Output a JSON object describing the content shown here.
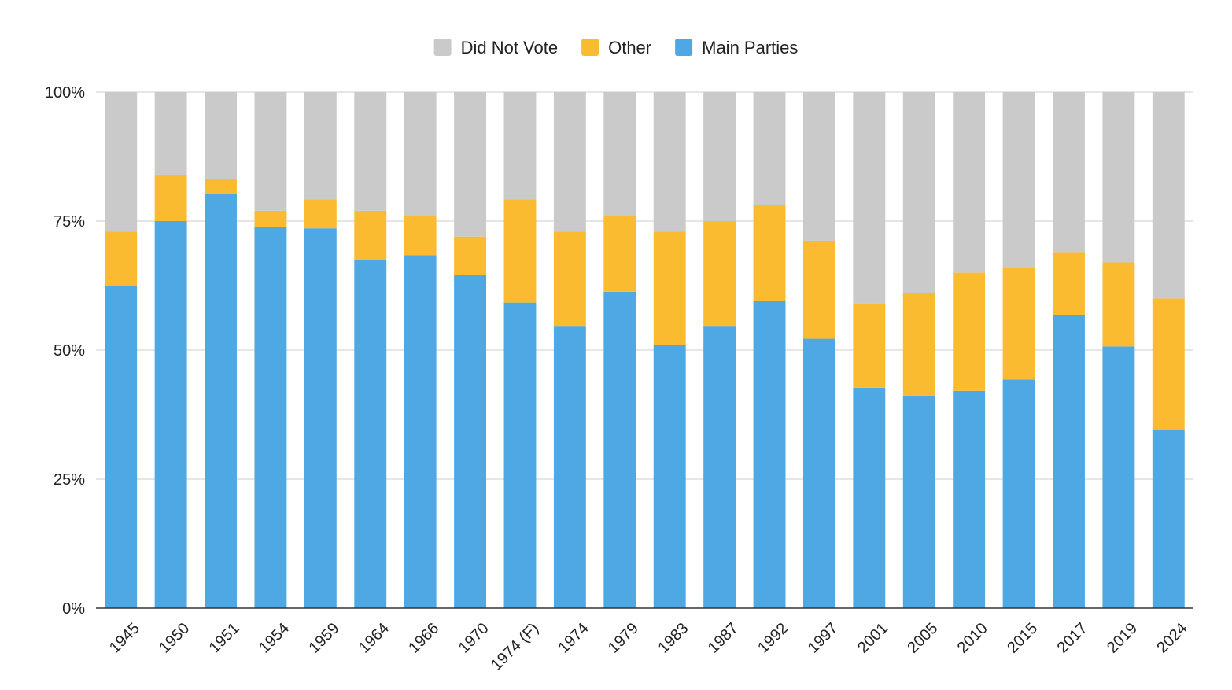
{
  "chart_data": {
    "type": "bar",
    "stacked": true,
    "normalized": true,
    "categories": [
      "1945",
      "1950",
      "1951",
      "1954",
      "1959",
      "1964",
      "1966",
      "1970",
      "1974 (F)",
      "1974",
      "1979",
      "1983",
      "1987",
      "1992",
      "1997",
      "2001",
      "2005",
      "2010",
      "2015",
      "2017",
      "2019",
      "2024"
    ],
    "series": [
      {
        "name": "Main Parties",
        "color": "#4da8e3",
        "values": [
          62.5,
          75.0,
          80.3,
          73.8,
          73.6,
          67.5,
          68.4,
          64.5,
          59.2,
          54.7,
          61.3,
          51.0,
          54.7,
          59.5,
          52.2,
          42.7,
          41.2,
          42.1,
          44.3,
          56.8,
          50.7,
          34.5
        ]
      },
      {
        "name": "Other",
        "color": "#fbbb31",
        "values": [
          10.5,
          9.0,
          2.8,
          3.2,
          5.6,
          9.5,
          7.6,
          7.5,
          20.0,
          18.3,
          14.7,
          22.0,
          20.3,
          18.6,
          19.0,
          16.3,
          19.8,
          22.9,
          21.7,
          12.2,
          16.3,
          25.5
        ]
      },
      {
        "name": "Did Not Vote",
        "color": "#cacaca",
        "values": [
          27.0,
          16.0,
          16.9,
          23.0,
          20.8,
          23.0,
          24.0,
          28.0,
          20.8,
          27.0,
          24.0,
          27.0,
          25.0,
          21.9,
          28.8,
          41.0,
          39.0,
          35.0,
          34.0,
          31.0,
          33.0,
          40.0
        ]
      }
    ],
    "legend_order": [
      "Did Not Vote",
      "Other",
      "Main Parties"
    ],
    "y_ticks": [
      "0%",
      "25%",
      "50%",
      "75%",
      "100%"
    ],
    "ylim": [
      0,
      100
    ],
    "grid": true,
    "legend_position": "top-center"
  }
}
